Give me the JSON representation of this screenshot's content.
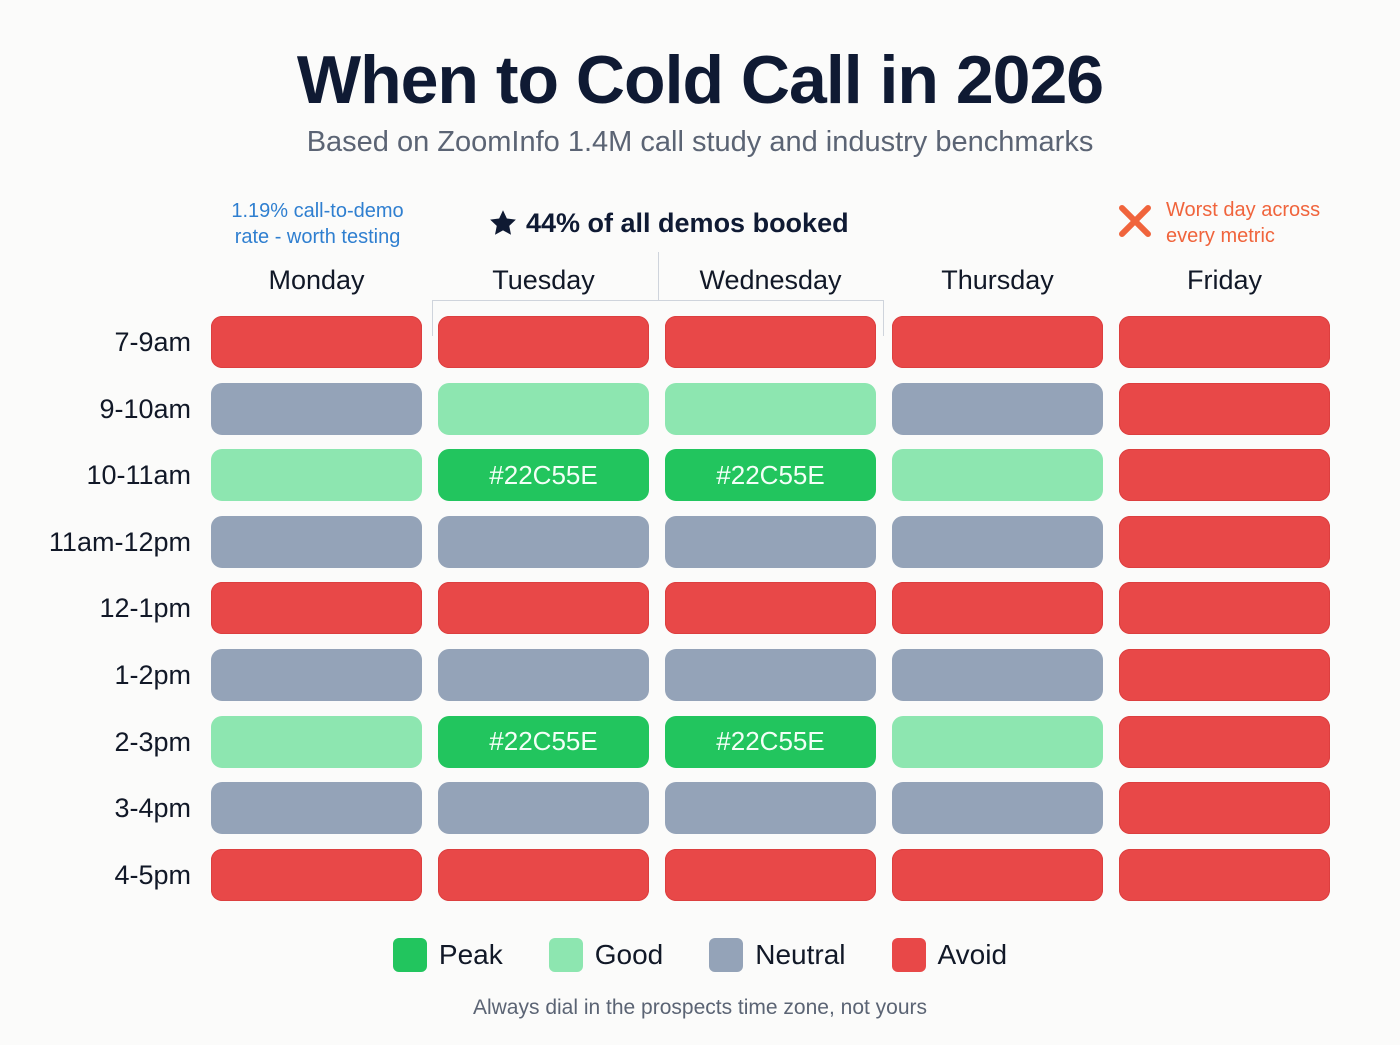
{
  "header": {
    "title": "When to Cold Call in 2026",
    "subtitle": "Based on ZoomInfo 1.4M call study and industry benchmarks"
  },
  "annotations": {
    "monday_note_line1": "1.19% call-to-demo",
    "monday_note_line2": "rate - worth testing",
    "peak_note": "44% of all demos booked",
    "peak_icon": "star-icon",
    "friday_note_line1": "Worst day across",
    "friday_note_line2": "every metric",
    "friday_icon": "x-icon"
  },
  "colors": {
    "peak": "#22C55E",
    "good": "#8DE6B0",
    "neutral": "#94A3B8",
    "avoid": "#E84848",
    "monday_note": "#2F7FD0",
    "friday_note": "#F0643C"
  },
  "legend": [
    {
      "key": "peak",
      "label": "Peak"
    },
    {
      "key": "good",
      "label": "Good"
    },
    {
      "key": "neutral",
      "label": "Neutral"
    },
    {
      "key": "avoid",
      "label": "Avoid"
    }
  ],
  "footer": "Always dial in the prospects time zone, not yours",
  "chart_data": {
    "type": "heatmap",
    "title": "When to Cold Call in 2026",
    "subtitle": "Based on ZoomInfo 1.4M call study and industry benchmarks",
    "columns": [
      "Monday",
      "Tuesday",
      "Wednesday",
      "Thursday",
      "Friday"
    ],
    "rows": [
      "7-9am",
      "9-10am",
      "10-11am",
      "11am-12pm",
      "12-1pm",
      "1-2pm",
      "2-3pm",
      "3-4pm",
      "4-5pm"
    ],
    "values": [
      [
        "avoid",
        "avoid",
        "avoid",
        "avoid",
        "avoid"
      ],
      [
        "neutral",
        "good",
        "good",
        "neutral",
        "avoid"
      ],
      [
        "good",
        "peak",
        "peak",
        "good",
        "avoid"
      ],
      [
        "neutral",
        "neutral",
        "neutral",
        "neutral",
        "avoid"
      ],
      [
        "avoid",
        "avoid",
        "avoid",
        "avoid",
        "avoid"
      ],
      [
        "neutral",
        "neutral",
        "neutral",
        "neutral",
        "avoid"
      ],
      [
        "good",
        "peak",
        "peak",
        "good",
        "avoid"
      ],
      [
        "neutral",
        "neutral",
        "neutral",
        "neutral",
        "avoid"
      ],
      [
        "avoid",
        "avoid",
        "avoid",
        "avoid",
        "avoid"
      ]
    ],
    "cell_labels": {
      "peak": "#22C55E"
    },
    "legend": [
      "Peak",
      "Good",
      "Neutral",
      "Avoid"
    ],
    "legend_position": "bottom",
    "annotations": [
      {
        "column": "Monday",
        "text": "1.19% call-to-demo rate - worth testing"
      },
      {
        "columns": [
          "Tuesday",
          "Wednesday"
        ],
        "text": "44% of all demos booked"
      },
      {
        "column": "Friday",
        "text": "Worst day across every metric"
      }
    ]
  }
}
